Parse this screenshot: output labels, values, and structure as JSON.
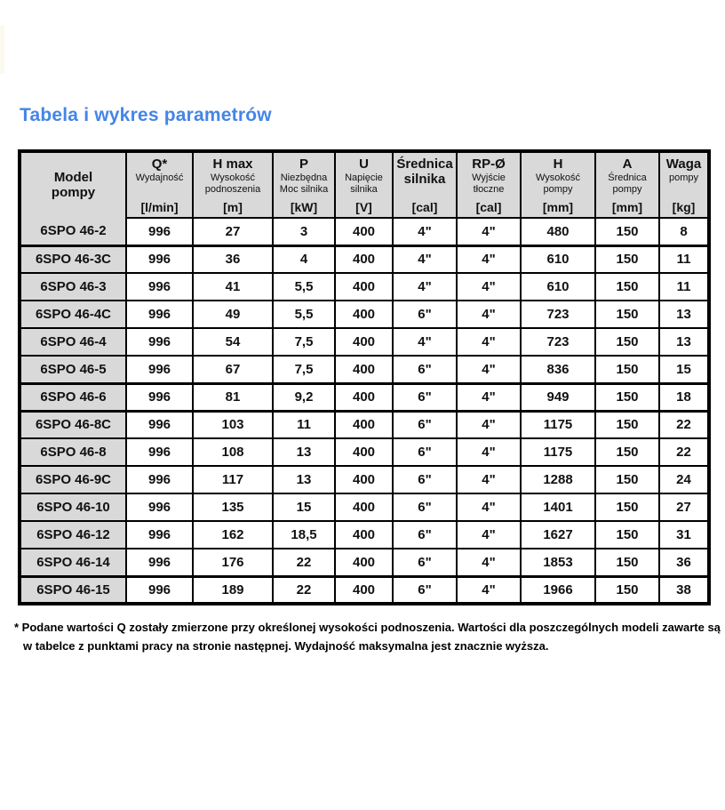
{
  "page": {
    "title": "Tabela i wykres parametrów"
  },
  "colors": {
    "title_blue": "#4585e6",
    "header_gray": "#d9d9d9",
    "border_black": "#000000"
  },
  "table": {
    "columns": [
      {
        "id": "model",
        "main": "Model\npompy",
        "sub": "",
        "unit": ""
      },
      {
        "id": "q",
        "main": "Q*",
        "sub": "Wydajność",
        "unit": "[l/min]"
      },
      {
        "id": "h-max",
        "main": "H max",
        "sub": "Wysokość podnoszenia",
        "unit": "[m]"
      },
      {
        "id": "p",
        "main": "P",
        "sub": "Niezbędna Moc silnika",
        "unit": "[kW]"
      },
      {
        "id": "u",
        "main": "U",
        "sub": "Napięcie silnika",
        "unit": "[V]"
      },
      {
        "id": "srednica-silnika",
        "main": "Średnica\nsilnika",
        "sub": "",
        "unit": "[cal]"
      },
      {
        "id": "rp-o",
        "main": "RP-Ø",
        "sub": "Wyjście tłoczne",
        "unit": "[cal]"
      },
      {
        "id": "h",
        "main": "H",
        "sub": "Wysokość pompy",
        "unit": "[mm]"
      },
      {
        "id": "a",
        "main": "A",
        "sub": "Średnica pompy",
        "unit": "[mm]"
      },
      {
        "id": "waga",
        "main": "Waga",
        "sub": "pompy",
        "unit": "[kg]"
      }
    ],
    "rows": [
      {
        "model": "6SPO 46-2",
        "group_start": false,
        "values": [
          "996",
          "27",
          "3",
          "400",
          "4\"",
          "4\"",
          "480",
          "150",
          "8"
        ]
      },
      {
        "model": "6SPO 46-3C",
        "group_start": true,
        "values": [
          "996",
          "36",
          "4",
          "400",
          "4\"",
          "4\"",
          "610",
          "150",
          "11"
        ]
      },
      {
        "model": "6SPO 46-3",
        "group_start": false,
        "values": [
          "996",
          "41",
          "5,5",
          "400",
          "4\"",
          "4\"",
          "610",
          "150",
          "11"
        ]
      },
      {
        "model": "6SPO 46-4C",
        "group_start": false,
        "values": [
          "996",
          "49",
          "5,5",
          "400",
          "6\"",
          "4\"",
          "723",
          "150",
          "13"
        ]
      },
      {
        "model": "6SPO 46-4",
        "group_start": false,
        "values": [
          "996",
          "54",
          "7,5",
          "400",
          "4\"",
          "4\"",
          "723",
          "150",
          "13"
        ]
      },
      {
        "model": "6SPO 46-5",
        "group_start": false,
        "values": [
          "996",
          "67",
          "7,5",
          "400",
          "6\"",
          "4\"",
          "836",
          "150",
          "15"
        ]
      },
      {
        "model": "6SPO 46-6",
        "group_start": true,
        "values": [
          "996",
          "81",
          "9,2",
          "400",
          "6\"",
          "4\"",
          "949",
          "150",
          "18"
        ]
      },
      {
        "model": "6SPO 46-8C",
        "group_start": true,
        "values": [
          "996",
          "103",
          "11",
          "400",
          "6\"",
          "4\"",
          "1175",
          "150",
          "22"
        ]
      },
      {
        "model": "6SPO 46-8",
        "group_start": false,
        "values": [
          "996",
          "108",
          "13",
          "400",
          "6\"",
          "4\"",
          "1175",
          "150",
          "22"
        ]
      },
      {
        "model": "6SPO 46-9C",
        "group_start": false,
        "values": [
          "996",
          "117",
          "13",
          "400",
          "6\"",
          "4\"",
          "1288",
          "150",
          "24"
        ]
      },
      {
        "model": "6SPO 46-10",
        "group_start": false,
        "values": [
          "996",
          "135",
          "15",
          "400",
          "6\"",
          "4\"",
          "1401",
          "150",
          "27"
        ]
      },
      {
        "model": "6SPO 46-12",
        "group_start": false,
        "values": [
          "996",
          "162",
          "18,5",
          "400",
          "6\"",
          "4\"",
          "1627",
          "150",
          "31"
        ]
      },
      {
        "model": "6SPO 46-14",
        "group_start": false,
        "values": [
          "996",
          "176",
          "22",
          "400",
          "6\"",
          "4\"",
          "1853",
          "150",
          "36"
        ]
      },
      {
        "model": "6SPO 46-15",
        "group_start": true,
        "values": [
          "996",
          "189",
          "22",
          "400",
          "6\"",
          "4\"",
          "1966",
          "150",
          "38"
        ]
      }
    ]
  },
  "footnote": {
    "lines": [
      "* Podane wartości Q zostały zmierzone przy określonej wysokości podnoszenia. Wartości dla poszczególnych modeli zawarte są",
      "w tabelce z punktami pracy na stronie następnej. Wydajność maksymalna jest znacznie wyższa."
    ]
  }
}
